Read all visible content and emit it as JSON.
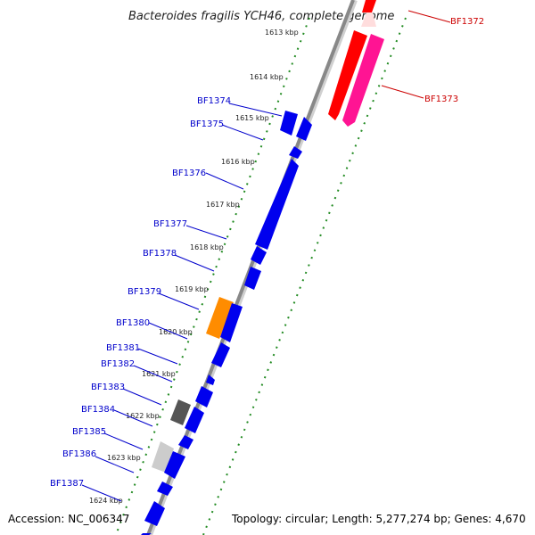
{
  "title": "Bacteroides fragilis YCH46, complete genome",
  "footer": {
    "accession": "Accession: NC_006347",
    "stats": "Topology: circular; Length: 5,277,274 bp; Genes: 4,670"
  },
  "ruler": [
    "1613 kbp",
    "1614 kbp",
    "1615 kbp",
    "1616 kbp",
    "1617 kbp",
    "1618 kbp",
    "1619 kbp",
    "1620 kbp",
    "1621 kbp",
    "1622 kbp",
    "1623 kbp",
    "1624 kbp"
  ],
  "gene_labels": [
    "BF1372",
    "BF1373",
    "BF1374",
    "BF1375",
    "BF1376",
    "BF1377",
    "BF1378",
    "BF1379",
    "BF1380",
    "BF1381",
    "BF1382",
    "BF1383",
    "BF1384",
    "BF1385",
    "BF1386",
    "BF1387"
  ],
  "colors": {
    "forward_gene": "#0000ee",
    "reverse_gene_1": "#ff0000",
    "reverse_gene_2": "#ff1493",
    "highlight_orange": "#ff8c00",
    "dark_gray_gene": "#555555",
    "light_gray_gene": "#cccccc",
    "tick_green": "#228b22",
    "backbone": "#888888"
  }
}
